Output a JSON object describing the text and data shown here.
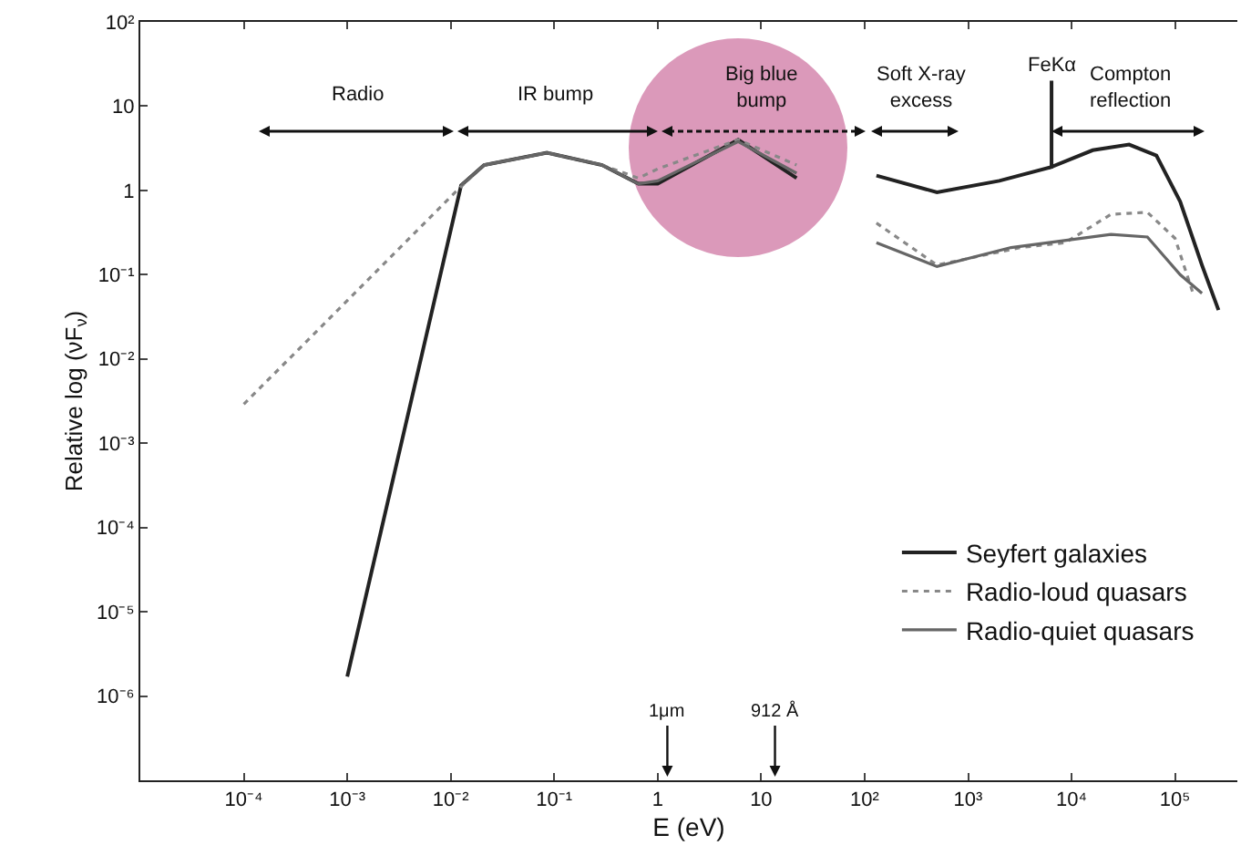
{
  "chart_data": {
    "type": "line",
    "xlabel": "E (eV)",
    "ylabel": "Relative log (νF$_{ν}$)",
    "log": "xy",
    "grid": false,
    "legend": "bottom right",
    "marker": "none",
    "xlim": [
      1e-05,
      400000
    ],
    "ylim": [
      1e-07,
      100
    ],
    "xticks": [
      {
        "value": 0.0001,
        "label": "10⁻⁴"
      },
      {
        "value": 0.001,
        "label": "10⁻³"
      },
      {
        "value": 0.01,
        "label": "10⁻²"
      },
      {
        "value": 0.1,
        "label": "10⁻¹"
      },
      1,
      10,
      {
        "value": 100,
        "label": "10²"
      },
      {
        "value": 1000,
        "label": "10³"
      },
      {
        "value": 10000,
        "label": "10⁴"
      },
      {
        "value": 100000,
        "label": "10⁵"
      }
    ],
    "yticks": [
      {
        "value": 1e-06,
        "label": "10⁻⁶"
      },
      {
        "value": 1e-05,
        "label": "10⁻⁵"
      },
      {
        "value": 0.0001,
        "label": "10⁻⁴"
      },
      {
        "value": 0.001,
        "label": "10⁻³"
      },
      {
        "value": 0.01,
        "label": "10⁻²"
      },
      {
        "value": 0.1,
        "label": "10⁻¹"
      },
      1,
      10,
      {
        "value": 100,
        "label": "10²"
      }
    ],
    "series": [
      {
        "name": "Seyfert galaxies",
        "color": "#222222",
        "line_style": "solid",
        "x": [
          0.001,
          0.0126,
          0.021,
          0.085,
          0.29,
          0.65,
          1.0,
          6,
          22,
          60,
          130,
          500,
          2000,
          6400,
          6400,
          6400,
          16000,
          36000,
          66000,
          112000,
          182000,
          263000
        ],
        "values": [
          1.7e-06,
          1.15,
          2,
          2.8,
          2,
          1.2,
          1.2,
          4,
          1.4,
          null,
          1.5,
          0.95,
          1.3,
          1.9,
          20,
          1.9,
          3,
          3.5,
          2.6,
          0.74,
          0.13,
          0.038
        ]
      },
      {
        "name": "Radio-loud quasars",
        "color": "#888888",
        "line_style": "dotted",
        "x": [
          0.0001,
          0.0115,
          0.021,
          0.085,
          0.29,
          0.65,
          1.0,
          6,
          22,
          60,
          130,
          500,
          3200,
          8700,
          24000,
          54000,
          100000,
          148000
        ],
        "values": [
          0.0029,
          1,
          2,
          2.8,
          2,
          1.4,
          1.8,
          4,
          2.0,
          null,
          0.41,
          0.13,
          0.21,
          0.24,
          0.52,
          0.55,
          0.27,
          0.062
        ]
      },
      {
        "name": "Radio-quiet quasars",
        "color": "#666666",
        "line_style": "solid",
        "x": [
          0.0126,
          0.021,
          0.085,
          0.29,
          0.65,
          1.0,
          6,
          22,
          60,
          130,
          500,
          2600,
          24000,
          54000,
          112000,
          182000
        ],
        "values": [
          1.15,
          2,
          2.8,
          2,
          1.2,
          1.3,
          3.8,
          1.6,
          null,
          0.24,
          0.125,
          0.21,
          0.3,
          0.28,
          0.1,
          0.06
        ]
      }
    ],
    "ref_lines": [
      {
        "axis": "x",
        "value": 1.24,
        "label": "1μm"
      },
      {
        "axis": "x",
        "value": 13.6,
        "label": "912 Å"
      }
    ],
    "annotations": [
      "Radio",
      "IR bump",
      "Big blue\nbump",
      "Soft X-ray\nexcess",
      {
        "text": "FeKα",
        "x": 6400,
        "y": 20
      },
      "Compton\nreflection"
    ]
  }
}
